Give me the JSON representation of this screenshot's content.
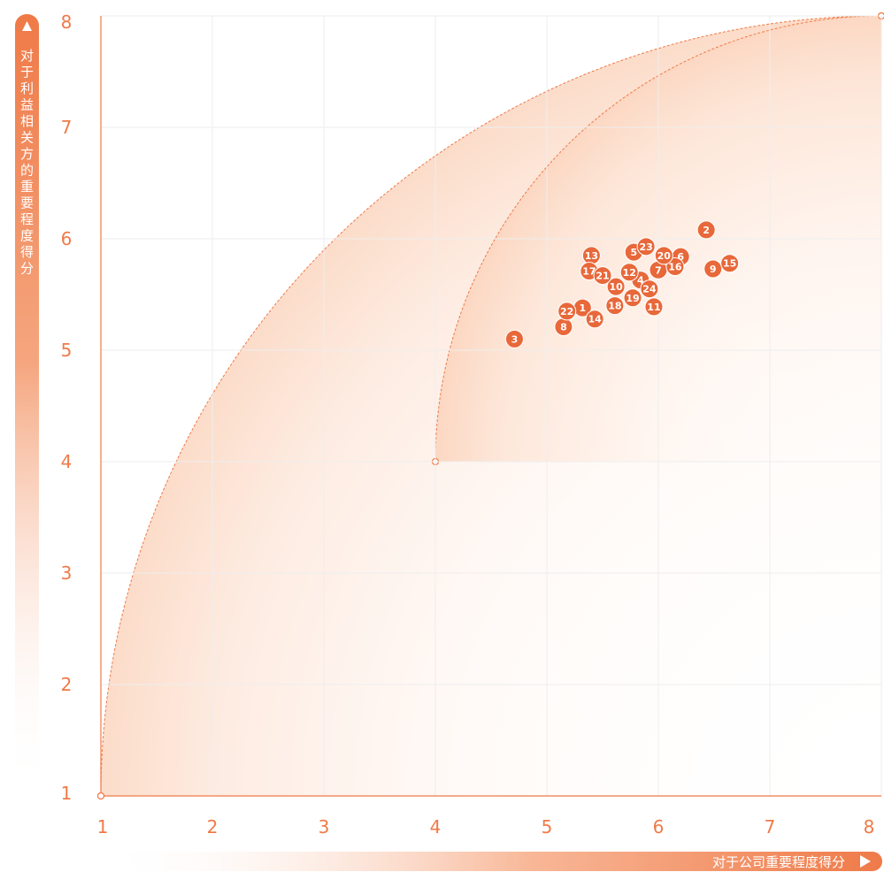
{
  "chart_data": {
    "type": "scatter",
    "title": "",
    "xlabel": "对于公司重要程度得分",
    "ylabel": "对于利益相关方的重要程度得分",
    "xlim": [
      1,
      8
    ],
    "ylim": [
      1,
      8
    ],
    "x_ticks": [
      "1",
      "2",
      "3",
      "4",
      "5",
      "6",
      "7",
      "8"
    ],
    "y_ticks": [
      "1",
      "2",
      "3",
      "4",
      "5",
      "6",
      "7",
      "8"
    ],
    "grid": true,
    "regions": [
      {
        "center": [
          8,
          1
        ],
        "radius": 7
      },
      {
        "center": [
          8,
          4
        ],
        "radius": 4
      }
    ],
    "points": [
      {
        "label": "1",
        "x": 5.32,
        "y": 5.38
      },
      {
        "label": "2",
        "x": 6.43,
        "y": 6.08
      },
      {
        "label": "3",
        "x": 4.71,
        "y": 5.1
      },
      {
        "label": "4",
        "x": 5.84,
        "y": 5.63
      },
      {
        "label": "5",
        "x": 5.78,
        "y": 5.88
      },
      {
        "label": "6",
        "x": 6.2,
        "y": 5.84
      },
      {
        "label": "7",
        "x": 6.0,
        "y": 5.72
      },
      {
        "label": "8",
        "x": 5.15,
        "y": 5.21
      },
      {
        "label": "9",
        "x": 6.49,
        "y": 5.73
      },
      {
        "label": "10",
        "x": 5.62,
        "y": 5.57
      },
      {
        "label": "11",
        "x": 5.96,
        "y": 5.39
      },
      {
        "label": "12",
        "x": 5.74,
        "y": 5.7
      },
      {
        "label": "13",
        "x": 5.4,
        "y": 5.85
      },
      {
        "label": "14",
        "x": 5.43,
        "y": 5.28
      },
      {
        "label": "15",
        "x": 6.64,
        "y": 5.78
      },
      {
        "label": "16",
        "x": 6.15,
        "y": 5.75
      },
      {
        "label": "17",
        "x": 5.38,
        "y": 5.71
      },
      {
        "label": "18",
        "x": 5.61,
        "y": 5.4
      },
      {
        "label": "19",
        "x": 5.77,
        "y": 5.47
      },
      {
        "label": "20",
        "x": 6.05,
        "y": 5.85
      },
      {
        "label": "21",
        "x": 5.5,
        "y": 5.67
      },
      {
        "label": "22",
        "x": 5.18,
        "y": 5.35
      },
      {
        "label": "23",
        "x": 5.89,
        "y": 5.93
      },
      {
        "label": "24",
        "x": 5.92,
        "y": 5.55
      }
    ],
    "colors": {
      "accent": "#ef7a48",
      "point": "#e8683a",
      "region_light": "#fde6d8",
      "grid": "#eeeeee"
    }
  }
}
